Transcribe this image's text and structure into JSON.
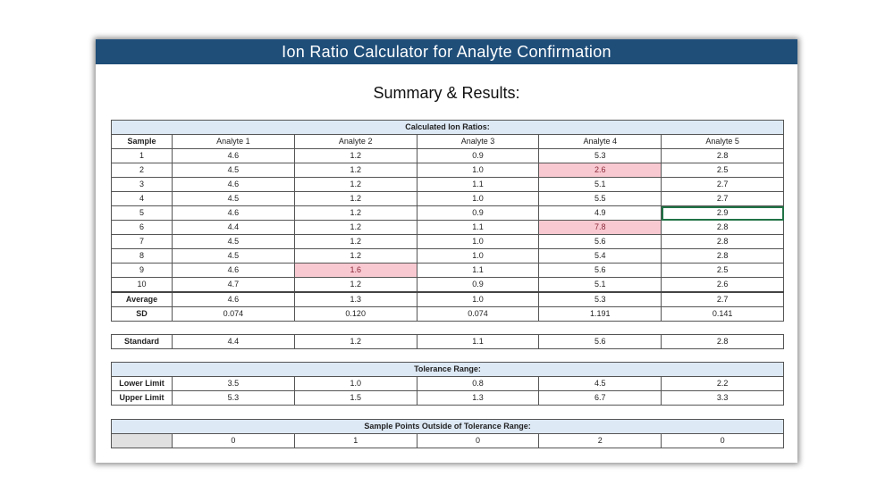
{
  "title": "Ion Ratio Calculator for Analyte Confirmation",
  "subtitle": "Summary & Results:",
  "ion_ratios": {
    "header": "Calculated Ion Ratios:",
    "sample_label": "Sample",
    "columns": [
      "Analyte 1",
      "Analyte 2",
      "Analyte 3",
      "Analyte 4",
      "Analyte 5"
    ],
    "rows": [
      {
        "sample": "1",
        "values": [
          "4.6",
          "1.2",
          "0.9",
          "5.3",
          "2.8"
        ]
      },
      {
        "sample": "2",
        "values": [
          "4.5",
          "1.2",
          "1.0",
          "2.6",
          "2.5"
        ]
      },
      {
        "sample": "3",
        "values": [
          "4.6",
          "1.2",
          "1.1",
          "5.1",
          "2.7"
        ]
      },
      {
        "sample": "4",
        "values": [
          "4.5",
          "1.2",
          "1.0",
          "5.5",
          "2.7"
        ]
      },
      {
        "sample": "5",
        "values": [
          "4.6",
          "1.2",
          "0.9",
          "4.9",
          "2.9"
        ]
      },
      {
        "sample": "6",
        "values": [
          "4.4",
          "1.2",
          "1.1",
          "7.8",
          "2.8"
        ]
      },
      {
        "sample": "7",
        "values": [
          "4.5",
          "1.2",
          "1.0",
          "5.6",
          "2.8"
        ]
      },
      {
        "sample": "8",
        "values": [
          "4.5",
          "1.2",
          "1.0",
          "5.4",
          "2.8"
        ]
      },
      {
        "sample": "9",
        "values": [
          "4.6",
          "1.6",
          "1.1",
          "5.6",
          "2.5"
        ]
      },
      {
        "sample": "10",
        "values": [
          "4.7",
          "1.2",
          "0.9",
          "5.1",
          "2.6"
        ]
      }
    ],
    "average": {
      "label": "Average",
      "values": [
        "4.6",
        "1.3",
        "1.0",
        "5.3",
        "2.7"
      ]
    },
    "sd": {
      "label": "SD",
      "values": [
        "0.074",
        "0.120",
        "0.074",
        "1.191",
        "0.141"
      ]
    }
  },
  "standard": {
    "label": "Standard",
    "values": [
      "4.4",
      "1.2",
      "1.1",
      "5.6",
      "2.8"
    ]
  },
  "tolerance": {
    "header": "Tolerance Range:",
    "lower": {
      "label": "Lower Limit",
      "values": [
        "3.5",
        "1.0",
        "0.8",
        "4.5",
        "2.2"
      ]
    },
    "upper": {
      "label": "Upper Limit",
      "values": [
        "5.3",
        "1.5",
        "1.3",
        "6.7",
        "3.3"
      ]
    }
  },
  "outside": {
    "header": "Sample Points Outside of Tolerance Range:",
    "values": [
      "0",
      "1",
      "0",
      "2",
      "0"
    ]
  },
  "colors": {
    "title_bg": "#1f4e79",
    "header_bg": "#dde9f5",
    "flag_bg": "#f9c9d1",
    "selection": "#217346"
  }
}
